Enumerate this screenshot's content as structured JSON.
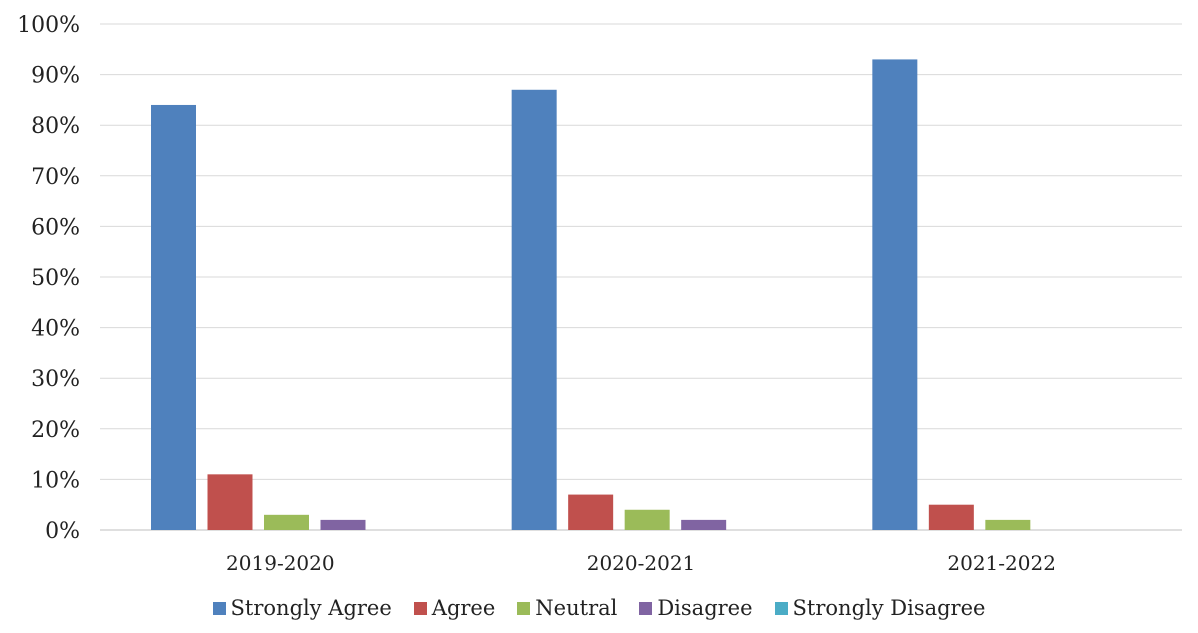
{
  "chart_data": {
    "type": "bar",
    "categories": [
      "2019-2020",
      "2020-2021",
      "2021-2022"
    ],
    "series": [
      {
        "name": "Strongly Agree",
        "color": "#4F81BD",
        "values": [
          84,
          87,
          93
        ]
      },
      {
        "name": "Agree",
        "color": "#C0504D",
        "values": [
          11,
          7,
          5
        ]
      },
      {
        "name": "Neutral",
        "color": "#9BBB59",
        "values": [
          3,
          4,
          2
        ]
      },
      {
        "name": "Disagree",
        "color": "#8064A2",
        "values": [
          2,
          2,
          0
        ]
      },
      {
        "name": "Strongly Disagree",
        "color": "#4BACC6",
        "values": [
          0,
          0,
          0
        ]
      }
    ],
    "ylim": [
      0,
      100
    ],
    "yticks": [
      "0%",
      "10%",
      "20%",
      "30%",
      "40%",
      "50%",
      "60%",
      "70%",
      "80%",
      "90%",
      "100%"
    ],
    "grid": true,
    "legend": "bottom"
  }
}
